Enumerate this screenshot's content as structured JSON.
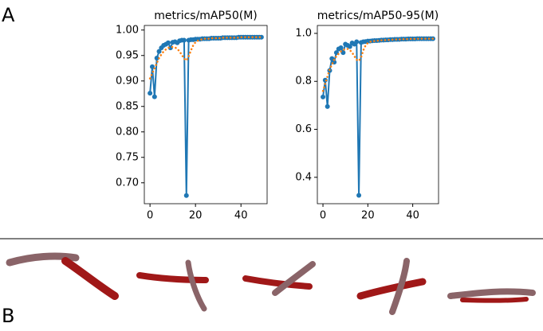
{
  "panel_labels": [
    "A",
    "B"
  ],
  "chart_data": [
    {
      "type": "line",
      "title": "metrics/mAP50(M)",
      "x": [
        0,
        1,
        2,
        3,
        4,
        5,
        6,
        7,
        8,
        9,
        10,
        11,
        12,
        13,
        14,
        15,
        16,
        17,
        18,
        19,
        20,
        21,
        22,
        23,
        24,
        25,
        26,
        27,
        28,
        29,
        30,
        31,
        32,
        33,
        34,
        35,
        36,
        37,
        38,
        39,
        40,
        41,
        42,
        43,
        44,
        45,
        46,
        47,
        48,
        49
      ],
      "xlim": [
        -2.5,
        51.5
      ],
      "xticks": [
        0,
        20,
        40
      ],
      "ylim": [
        0.659,
        1.009
      ],
      "yticks": [
        {
          "value": 0.7,
          "label": "0.70"
        },
        0.75,
        {
          "value": 0.8,
          "label": "0.80"
        },
        0.85,
        {
          "value": 0.9,
          "label": "0.90"
        },
        0.95,
        {
          "value": 1.0,
          "label": "1.00"
        }
      ],
      "series": [
        {
          "color": "#1f77b4",
          "style": "solid",
          "markers": true,
          "values": [
            0.876,
            0.928,
            0.869,
            0.945,
            0.958,
            0.965,
            0.97,
            0.972,
            0.975,
            0.965,
            0.976,
            0.977,
            0.975,
            0.979,
            0.98,
            0.98,
            0.675,
            0.98,
            0.981,
            0.981,
            0.982,
            0.982,
            0.982,
            0.983,
            0.983,
            0.983,
            0.983,
            0.984,
            0.984,
            0.984,
            0.984,
            0.984,
            0.985,
            0.985,
            0.985,
            0.985,
            0.985,
            0.985,
            0.985,
            0.986,
            0.986,
            0.986,
            0.986,
            0.986,
            0.986,
            0.986,
            0.986,
            0.986,
            0.986,
            0.986
          ]
        },
        {
          "color": "#ff7f0e",
          "style": "dotted",
          "markers": false,
          "values": [
            0.905,
            0.915,
            0.925,
            0.935,
            0.945,
            0.952,
            0.958,
            0.962,
            0.965,
            0.966,
            0.967,
            0.966,
            0.963,
            0.958,
            0.951,
            0.944,
            0.94,
            0.948,
            0.96,
            0.97,
            0.976,
            0.979,
            0.981,
            0.982,
            0.983,
            0.983,
            0.983,
            0.984,
            0.984,
            0.984,
            0.984,
            0.984,
            0.985,
            0.985,
            0.985,
            0.985,
            0.985,
            0.985,
            0.985,
            0.985,
            0.986,
            0.986,
            0.986,
            0.986,
            0.986,
            0.986,
            0.986,
            0.986,
            0.986,
            0.986
          ]
        }
      ]
    },
    {
      "type": "line",
      "title": "metrics/mAP50-95(M)",
      "x": [
        0,
        1,
        2,
        3,
        4,
        5,
        6,
        7,
        8,
        9,
        10,
        11,
        12,
        13,
        14,
        15,
        16,
        17,
        18,
        19,
        20,
        21,
        22,
        23,
        24,
        25,
        26,
        27,
        28,
        29,
        30,
        31,
        32,
        33,
        34,
        35,
        36,
        37,
        38,
        39,
        40,
        41,
        42,
        43,
        44,
        45,
        46,
        47,
        48,
        49
      ],
      "xlim": [
        -2.5,
        51.5
      ],
      "xticks": [
        0,
        20,
        40
      ],
      "ylim": [
        0.29,
        1.033
      ],
      "yticks": [
        0.4,
        0.6,
        0.8,
        {
          "value": 1.0,
          "label": "1.0"
        }
      ],
      "series": [
        {
          "color": "#1f77b4",
          "style": "solid",
          "markers": true,
          "values": [
            0.735,
            0.805,
            0.695,
            0.845,
            0.895,
            0.88,
            0.92,
            0.935,
            0.94,
            0.92,
            0.955,
            0.95,
            0.945,
            0.96,
            0.955,
            0.965,
            0.325,
            0.962,
            0.965,
            0.966,
            0.968,
            0.968,
            0.969,
            0.97,
            0.97,
            0.971,
            0.972,
            0.972,
            0.973,
            0.973,
            0.974,
            0.974,
            0.975,
            0.975,
            0.975,
            0.976,
            0.976,
            0.976,
            0.977,
            0.977,
            0.977,
            0.977,
            0.978,
            0.978,
            0.978,
            0.978,
            0.978,
            0.978,
            0.978,
            0.978
          ]
        },
        {
          "color": "#ff7f0e",
          "style": "dotted",
          "markers": false,
          "values": [
            0.76,
            0.79,
            0.82,
            0.85,
            0.87,
            0.89,
            0.905,
            0.915,
            0.925,
            0.93,
            0.935,
            0.935,
            0.93,
            0.92,
            0.905,
            0.89,
            0.885,
            0.9,
            0.93,
            0.95,
            0.96,
            0.965,
            0.967,
            0.968,
            0.969,
            0.97,
            0.971,
            0.972,
            0.972,
            0.973,
            0.973,
            0.974,
            0.974,
            0.975,
            0.975,
            0.975,
            0.976,
            0.976,
            0.976,
            0.977,
            0.977,
            0.977,
            0.977,
            0.978,
            0.978,
            0.978,
            0.978,
            0.978,
            0.978,
            0.978
          ]
        }
      ]
    }
  ]
}
